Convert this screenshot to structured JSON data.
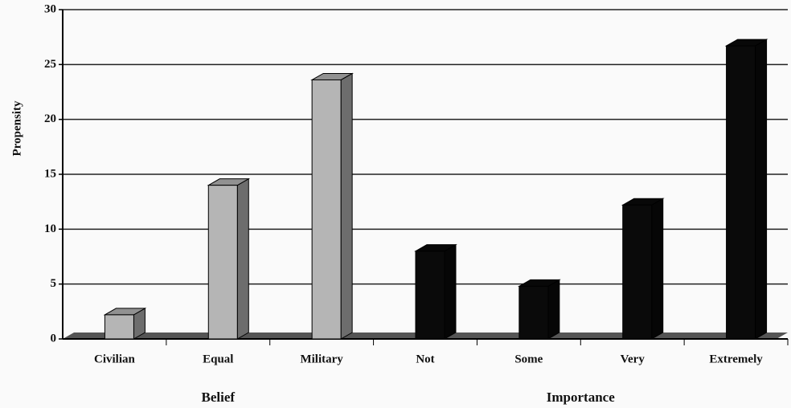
{
  "chart_data": {
    "type": "bar",
    "y_label": "Propensity",
    "categories": [
      "Civilian",
      "Equal",
      "Military",
      "Not",
      "Some",
      "Very",
      "Extremely"
    ],
    "series": [
      {
        "name": "Belief",
        "color": "#b5b5b5",
        "values": [
          2.2,
          14,
          23.6,
          null,
          null,
          null,
          null
        ]
      },
      {
        "name": "Importance",
        "color": "#0a0a0a",
        "values": [
          null,
          null,
          null,
          8,
          4.8,
          12.2,
          26.7
        ]
      }
    ],
    "ylim": [
      0,
      30
    ],
    "yticks": [
      0,
      5,
      10,
      15,
      20,
      25,
      30
    ],
    "grid": true
  }
}
